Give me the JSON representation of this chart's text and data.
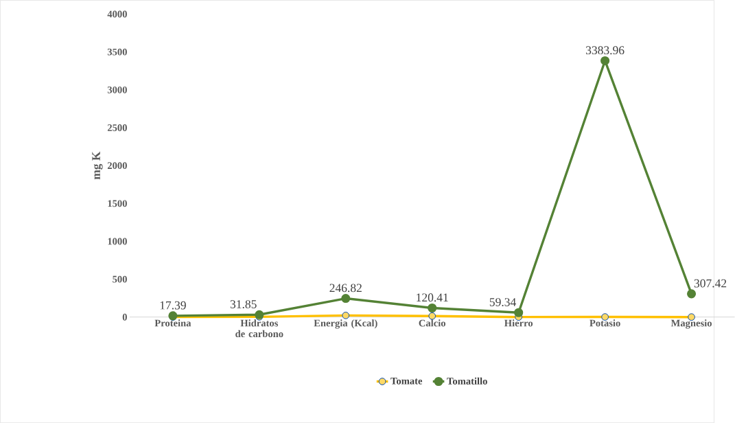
{
  "chart_data": {
    "type": "line",
    "ylabel": "mg K",
    "categories": [
      "Proteina",
      "Hidratos de carbono",
      "Energia (Kcal)",
      "Calcio",
      "Hierro",
      "Potasio",
      "Magnesio"
    ],
    "series": [
      {
        "name": "Tomate",
        "color": "#ffc000",
        "values": [
          1,
          4,
          22,
          14,
          1,
          2,
          1
        ]
      },
      {
        "name": "Tomatillo",
        "color": "#548235",
        "values": [
          17.39,
          31.85,
          246.82,
          120.41,
          59.34,
          3383.96,
          307.42
        ],
        "value_labels": [
          "17.39",
          "31.85",
          "246.82",
          "120.41",
          "59.34",
          "3383.96",
          "307.42"
        ]
      }
    ],
    "ylim": [
      0,
      4000
    ],
    "yticks": [
      0,
      500,
      1000,
      1500,
      2000,
      2500,
      3000,
      3500,
      4000
    ],
    "marker": "circle",
    "legend": "bottom",
    "grid": false
  }
}
